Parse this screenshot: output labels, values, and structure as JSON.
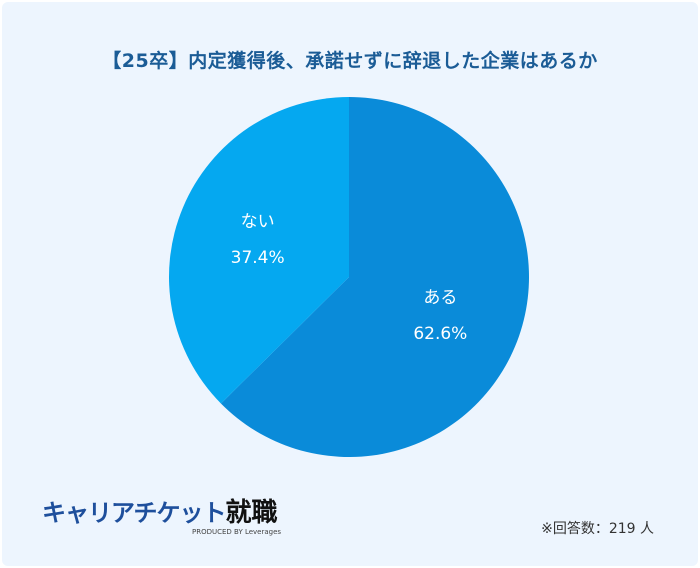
{
  "title": "【25卒】内定獲得後、承諾せずに辞退した企業はあるか",
  "chart_data": {
    "type": "pie",
    "title": "【25卒】内定獲得後、承諾せずに辞退した企業はあるか",
    "categories": [
      "ある",
      "ない"
    ],
    "values": [
      62.6,
      37.4
    ],
    "labels": [
      "62.6%",
      "37.4%"
    ],
    "colors": [
      "#0a8bd9",
      "#05a8f0"
    ],
    "start": "top",
    "direction": "clockwise"
  },
  "logo": {
    "main": "キャリアチケット",
    "kanji": "就職",
    "sub": "PRODUCED BY Leverages"
  },
  "note": "※回答数：219 人"
}
